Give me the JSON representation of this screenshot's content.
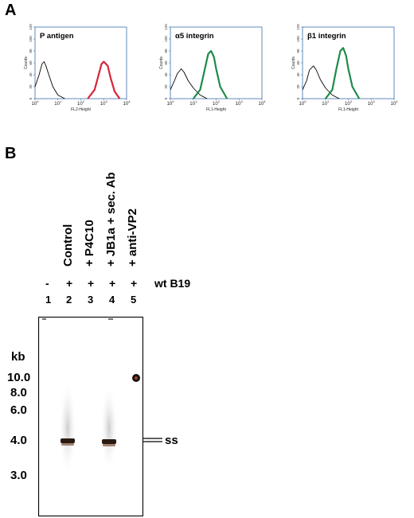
{
  "panel_a": {
    "letter": "A",
    "histograms": [
      {
        "title": "P antigen",
        "xlabel": "FL2-Height",
        "ylabel": "Counts",
        "color": "#d8233a",
        "yticks": [
          "0",
          "20",
          "40",
          "60",
          "80",
          "100",
          "120"
        ],
        "xticks": [
          {
            "base": "10",
            "exp": "0"
          },
          {
            "base": "10",
            "exp": "1"
          },
          {
            "base": "10",
            "exp": "2"
          },
          {
            "base": "10",
            "exp": "3"
          },
          {
            "base": "10",
            "exp": "4"
          }
        ]
      },
      {
        "title": "α5 integrin",
        "xlabel": "FL1-Height",
        "ylabel": "Counts",
        "color": "#1f8a4c",
        "yticks": [
          "0",
          "20",
          "40",
          "60",
          "80",
          "100",
          "120"
        ],
        "xticks": [
          {
            "base": "10",
            "exp": "0"
          },
          {
            "base": "10",
            "exp": "1"
          },
          {
            "base": "10",
            "exp": "2"
          },
          {
            "base": "10",
            "exp": "3"
          },
          {
            "base": "10",
            "exp": "4"
          }
        ]
      },
      {
        "title": "β1 integrin",
        "xlabel": "FL1-Height",
        "ylabel": "Counts",
        "color": "#1f8a4c",
        "yticks": [
          "0",
          "20",
          "40",
          "60",
          "80",
          "100",
          "120"
        ],
        "xticks": [
          {
            "base": "10",
            "exp": "0"
          },
          {
            "base": "10",
            "exp": "1"
          },
          {
            "base": "10",
            "exp": "2"
          },
          {
            "base": "10",
            "exp": "3"
          },
          {
            "base": "10",
            "exp": "4"
          }
        ]
      }
    ]
  },
  "panel_b": {
    "letter": "B",
    "lane_labels": [
      "Control",
      "+ P4C10",
      "+ JB1a + sec. Ab",
      "+ anti-VP2"
    ],
    "infection_marks": [
      "-",
      "+",
      "+",
      "+",
      "+"
    ],
    "virus_label": "wt B19",
    "lane_numbers": [
      "1",
      "2",
      "3",
      "4",
      "5"
    ],
    "unit_label": "kb",
    "markers": [
      "10.0",
      "8.0",
      "6.0",
      "4.0",
      "3.0"
    ],
    "band_label": "ss"
  },
  "chart_data": [
    {
      "type": "line",
      "title": "P antigen",
      "xlabel": "FL2-Height",
      "ylabel": "Counts",
      "xscale": "log",
      "xlim": [
        1,
        10000
      ],
      "ylim": [
        0,
        120
      ],
      "series": [
        {
          "name": "",
          "x": [
            1,
            1.5,
            2,
            2.5,
            3,
            4,
            6,
            10,
            20
          ],
          "y": [
            20,
            40,
            58,
            62,
            55,
            40,
            20,
            6,
            0
          ]
        },
        {
          "name": "",
          "x": [
            200,
            400,
            600,
            800,
            1000,
            1500,
            2000,
            3000,
            5000
          ],
          "y": [
            0,
            15,
            40,
            58,
            62,
            55,
            35,
            12,
            0
          ]
        }
      ]
    },
    {
      "type": "line",
      "title": "α5 integrin",
      "xlabel": "FL1-Height",
      "ylabel": "Counts",
      "xscale": "log",
      "xlim": [
        1,
        10000
      ],
      "ylim": [
        0,
        120
      ],
      "series": [
        {
          "name": "",
          "x": [
            1,
            1.5,
            2,
            3,
            4,
            6,
            10,
            20,
            40
          ],
          "y": [
            15,
            30,
            42,
            50,
            44,
            30,
            18,
            6,
            0
          ]
        },
        {
          "name": "",
          "x": [
            10,
            20,
            30,
            45,
            60,
            80,
            100,
            150,
            300
          ],
          "y": [
            0,
            15,
            45,
            75,
            80,
            70,
            50,
            20,
            0
          ]
        }
      ]
    },
    {
      "type": "line",
      "title": "β1 integrin",
      "xlabel": "FL1-Height",
      "ylabel": "Counts",
      "xscale": "log",
      "xlim": [
        1,
        10000
      ],
      "ylim": [
        0,
        120
      ],
      "series": [
        {
          "name": "",
          "x": [
            1,
            1.5,
            2,
            3,
            4,
            6,
            10,
            20,
            40
          ],
          "y": [
            15,
            30,
            48,
            55,
            48,
            32,
            18,
            6,
            0
          ]
        },
        {
          "name": "",
          "x": [
            10,
            20,
            30,
            45,
            60,
            80,
            100,
            150,
            300
          ],
          "y": [
            0,
            15,
            50,
            80,
            85,
            72,
            50,
            20,
            0
          ]
        }
      ]
    }
  ]
}
